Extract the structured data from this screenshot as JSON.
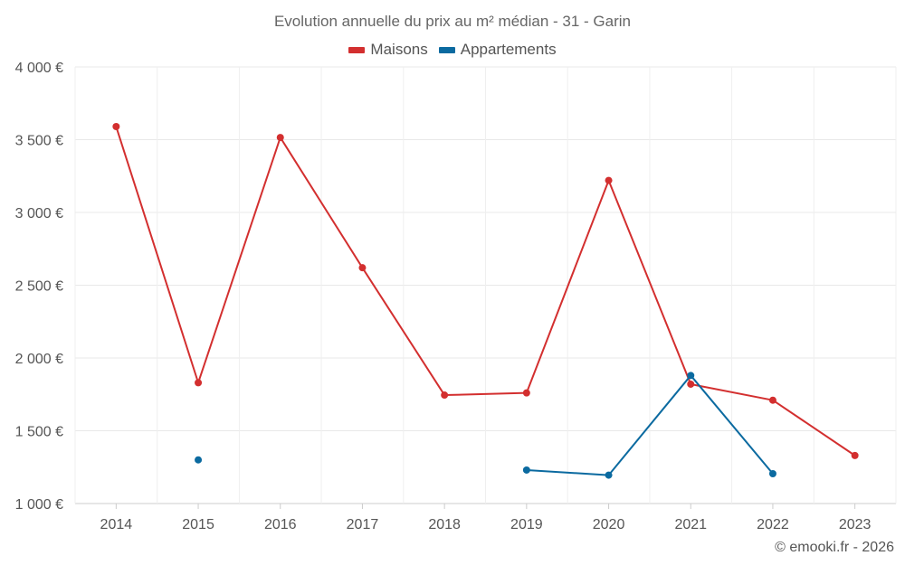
{
  "chart_data": {
    "type": "line",
    "title": "Evolution annuelle du prix au m² médian - 31 - Garin",
    "categories": [
      "2014",
      "2015",
      "2016",
      "2017",
      "2018",
      "2019",
      "2020",
      "2021",
      "2022",
      "2023"
    ],
    "ylim": [
      1000,
      4000
    ],
    "yticks": [
      1000,
      1500,
      2000,
      2500,
      3000,
      3500,
      4000
    ],
    "ytick_labels": [
      "1 000 €",
      "1 500 €",
      "2 000 €",
      "2 500 €",
      "3 000 €",
      "3 500 €",
      "4 000 €"
    ],
    "grid": true,
    "legend_position": "top-center",
    "series": [
      {
        "name": "Maisons",
        "color": "#d32f2f",
        "values": [
          3590,
          1830,
          3515,
          2620,
          1745,
          1760,
          3220,
          1820,
          1710,
          1330
        ]
      },
      {
        "name": "Appartements",
        "color": "#0b6aa0",
        "values": [
          null,
          1300,
          null,
          null,
          null,
          1230,
          1195,
          1880,
          1205,
          null
        ]
      }
    ]
  },
  "credit": "© emooki.fr - 2026"
}
